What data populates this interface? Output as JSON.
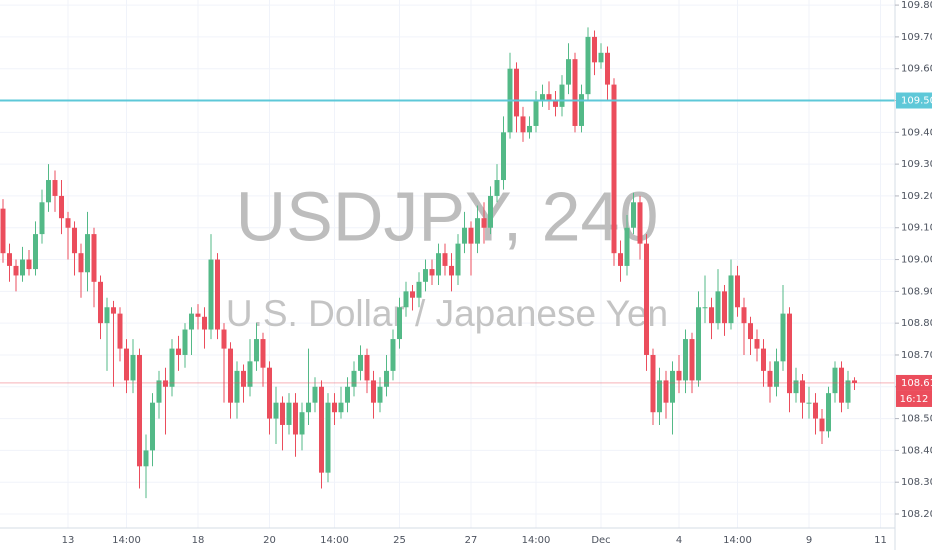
{
  "chart_data": {
    "type": "candlestick",
    "title": "USDJPY, 240",
    "subtitle": "U.S. Dollar / Japanese Yen",
    "x": [
      null,
      null,
      null,
      null,
      null,
      null,
      null,
      null,
      null,
      null,
      "13",
      null,
      null,
      null,
      null,
      null,
      null,
      null,
      null,
      "14:00",
      null,
      null,
      null,
      null,
      null,
      null,
      null,
      null,
      null,
      null,
      "18",
      null,
      null,
      null,
      null,
      null,
      null,
      null,
      null,
      null,
      null,
      "20",
      null,
      null,
      null,
      null,
      null,
      null,
      null,
      null,
      null,
      "14:00",
      null,
      null,
      null,
      null,
      null,
      null,
      null,
      null,
      null,
      "25",
      null,
      null,
      null,
      null,
      null,
      null,
      null,
      null,
      null,
      null,
      "27",
      null,
      null,
      null,
      null,
      null,
      null,
      null,
      null,
      null,
      "14:00",
      null,
      null,
      null,
      null,
      null,
      null,
      null,
      null,
      null,
      "Dec",
      null,
      null,
      null,
      null,
      null,
      null,
      null,
      null,
      null,
      null,
      null,
      "4",
      null,
      null,
      null,
      null,
      null,
      null,
      null,
      null,
      "14:00",
      null,
      null,
      null,
      null,
      null,
      null,
      null,
      null,
      null,
      null,
      "9",
      null,
      null,
      null,
      null,
      null,
      null,
      null,
      null,
      null,
      null,
      "11"
    ],
    "ohlc": [
      [
        109.16,
        109.19,
        108.99,
        109.02
      ],
      [
        109.02,
        109.05,
        108.93,
        108.98
      ],
      [
        108.98,
        109.0,
        108.9,
        108.95
      ],
      [
        108.95,
        109.04,
        108.93,
        109.0
      ],
      [
        109.0,
        109.03,
        108.95,
        108.97
      ],
      [
        108.97,
        109.12,
        108.95,
        109.08
      ],
      [
        109.08,
        109.22,
        109.05,
        109.18
      ],
      [
        109.18,
        109.3,
        109.15,
        109.25
      ],
      [
        109.25,
        109.28,
        109.15,
        109.2
      ],
      [
        109.2,
        109.25,
        109.08,
        109.13
      ],
      [
        109.13,
        109.15,
        109.0,
        109.1
      ],
      [
        109.1,
        109.12,
        108.95,
        109.02
      ],
      [
        109.02,
        109.05,
        108.88,
        108.96
      ],
      [
        108.96,
        109.15,
        108.9,
        109.08
      ],
      [
        109.08,
        109.1,
        108.85,
        108.93
      ],
      [
        108.93,
        108.95,
        108.75,
        108.8
      ],
      [
        108.8,
        108.88,
        108.65,
        108.85
      ],
      [
        108.85,
        108.87,
        108.6,
        108.83
      ],
      [
        108.83,
        108.85,
        108.68,
        108.72
      ],
      [
        108.72,
        108.75,
        108.58,
        108.62
      ],
      [
        108.62,
        108.75,
        108.58,
        108.7
      ],
      [
        108.7,
        108.72,
        108.28,
        108.35
      ],
      [
        108.35,
        108.45,
        108.25,
        108.4
      ],
      [
        108.4,
        108.58,
        108.35,
        108.55
      ],
      [
        108.55,
        108.65,
        108.5,
        108.62
      ],
      [
        108.62,
        108.66,
        108.45,
        108.6
      ],
      [
        108.6,
        108.75,
        108.57,
        108.72
      ],
      [
        108.72,
        108.76,
        108.65,
        108.7
      ],
      [
        108.7,
        108.8,
        108.66,
        108.78
      ],
      [
        108.78,
        108.85,
        108.7,
        108.83
      ],
      [
        108.83,
        108.86,
        108.78,
        108.82
      ],
      [
        108.82,
        108.85,
        108.72,
        108.78
      ],
      [
        108.78,
        109.08,
        108.75,
        109.0
      ],
      [
        109.0,
        109.02,
        108.75,
        108.78
      ],
      [
        108.78,
        108.8,
        108.55,
        108.72
      ],
      [
        108.72,
        108.74,
        108.5,
        108.55
      ],
      [
        108.55,
        108.68,
        108.5,
        108.65
      ],
      [
        108.65,
        108.67,
        108.55,
        108.6
      ],
      [
        108.6,
        108.75,
        108.57,
        108.68
      ],
      [
        108.68,
        108.8,
        108.65,
        108.75
      ],
      [
        108.75,
        108.77,
        108.6,
        108.66
      ],
      [
        108.66,
        108.68,
        108.45,
        108.5
      ],
      [
        108.5,
        108.6,
        108.42,
        108.55
      ],
      [
        108.55,
        108.57,
        108.4,
        108.48
      ],
      [
        108.48,
        108.58,
        108.45,
        108.55
      ],
      [
        108.55,
        108.58,
        108.38,
        108.45
      ],
      [
        108.45,
        108.55,
        108.4,
        108.52
      ],
      [
        108.52,
        108.72,
        108.48,
        108.55
      ],
      [
        108.55,
        108.63,
        108.52,
        108.6
      ],
      [
        108.6,
        108.62,
        108.28,
        108.33
      ],
      [
        108.33,
        108.58,
        108.3,
        108.55
      ],
      [
        108.55,
        108.58,
        108.48,
        108.52
      ],
      [
        108.52,
        108.6,
        108.5,
        108.55
      ],
      [
        108.55,
        108.63,
        108.52,
        108.6
      ],
      [
        108.6,
        108.68,
        108.57,
        108.65
      ],
      [
        108.65,
        108.73,
        108.62,
        108.7
      ],
      [
        108.7,
        108.72,
        108.58,
        108.62
      ],
      [
        108.62,
        108.65,
        108.5,
        108.55
      ],
      [
        108.55,
        108.63,
        108.52,
        108.6
      ],
      [
        108.6,
        108.7,
        108.57,
        108.65
      ],
      [
        108.65,
        108.78,
        108.62,
        108.75
      ],
      [
        108.75,
        108.88,
        108.72,
        108.85
      ],
      [
        108.85,
        108.93,
        108.82,
        108.9
      ],
      [
        108.9,
        108.92,
        108.84,
        108.88
      ],
      [
        108.88,
        108.96,
        108.85,
        108.93
      ],
      [
        108.93,
        109.0,
        108.9,
        108.97
      ],
      [
        108.97,
        109.0,
        108.92,
        108.95
      ],
      [
        108.95,
        109.05,
        108.92,
        109.02
      ],
      [
        109.02,
        109.05,
        108.95,
        108.98
      ],
      [
        108.98,
        109.02,
        108.9,
        108.95
      ],
      [
        108.95,
        109.08,
        108.92,
        109.05
      ],
      [
        109.05,
        109.15,
        109.02,
        109.1
      ],
      [
        109.1,
        109.12,
        108.95,
        109.05
      ],
      [
        109.05,
        109.17,
        109.02,
        109.13
      ],
      [
        109.13,
        109.18,
        109.05,
        109.1
      ],
      [
        109.1,
        109.23,
        109.08,
        109.2
      ],
      [
        109.2,
        109.3,
        109.18,
        109.25
      ],
      [
        109.25,
        109.45,
        109.22,
        109.4
      ],
      [
        109.4,
        109.65,
        109.38,
        109.6
      ],
      [
        109.6,
        109.62,
        109.4,
        109.45
      ],
      [
        109.45,
        109.48,
        109.37,
        109.4
      ],
      [
        109.4,
        109.45,
        109.38,
        109.42
      ],
      [
        109.42,
        109.53,
        109.4,
        109.5
      ],
      [
        109.5,
        109.55,
        109.48,
        109.52
      ],
      [
        109.52,
        109.56,
        109.47,
        109.5
      ],
      [
        109.5,
        109.53,
        109.45,
        109.48
      ],
      [
        109.48,
        109.58,
        109.45,
        109.55
      ],
      [
        109.55,
        109.68,
        109.52,
        109.63
      ],
      [
        109.63,
        109.65,
        109.4,
        109.42
      ],
      [
        109.42,
        109.55,
        109.4,
        109.52
      ],
      [
        109.52,
        109.73,
        109.5,
        109.7
      ],
      [
        109.7,
        109.72,
        109.58,
        109.62
      ],
      [
        109.62,
        109.68,
        109.6,
        109.65
      ],
      [
        109.65,
        109.67,
        109.5,
        109.55
      ],
      [
        109.55,
        109.57,
        108.98,
        109.02
      ],
      [
        109.02,
        109.06,
        108.93,
        108.98
      ],
      [
        108.98,
        109.14,
        108.95,
        109.1
      ],
      [
        109.1,
        109.21,
        109.08,
        109.18
      ],
      [
        109.18,
        109.2,
        109.0,
        109.05
      ],
      [
        109.05,
        109.08,
        108.65,
        108.7
      ],
      [
        108.7,
        108.72,
        108.48,
        108.52
      ],
      [
        108.52,
        108.66,
        108.48,
        108.62
      ],
      [
        108.62,
        108.65,
        108.5,
        108.55
      ],
      [
        108.55,
        108.68,
        108.45,
        108.65
      ],
      [
        108.65,
        108.7,
        108.58,
        108.62
      ],
      [
        108.62,
        108.78,
        108.58,
        108.75
      ],
      [
        108.75,
        108.77,
        108.58,
        108.62
      ],
      [
        108.62,
        108.9,
        108.6,
        108.85
      ],
      [
        108.85,
        108.95,
        108.8,
        108.85
      ],
      [
        108.85,
        108.88,
        108.75,
        108.8
      ],
      [
        108.8,
        108.97,
        108.78,
        108.9
      ],
      [
        108.9,
        108.92,
        108.76,
        108.8
      ],
      [
        108.8,
        109.0,
        108.78,
        108.95
      ],
      [
        108.95,
        108.98,
        108.82,
        108.85
      ],
      [
        108.85,
        108.88,
        108.7,
        108.8
      ],
      [
        108.8,
        108.82,
        108.7,
        108.75
      ],
      [
        108.75,
        108.78,
        108.68,
        108.72
      ],
      [
        108.72,
        108.75,
        108.6,
        108.65
      ],
      [
        108.65,
        108.68,
        108.55,
        108.6
      ],
      [
        108.6,
        108.72,
        108.57,
        108.68
      ],
      [
        108.68,
        108.92,
        108.65,
        108.83
      ],
      [
        108.83,
        108.85,
        108.52,
        108.58
      ],
      [
        108.58,
        108.66,
        108.55,
        108.62
      ],
      [
        108.62,
        108.64,
        108.5,
        108.55
      ],
      [
        108.55,
        108.6,
        108.5,
        108.55
      ],
      [
        108.55,
        108.58,
        108.45,
        108.5
      ],
      [
        108.5,
        108.53,
        108.42,
        108.46
      ],
      [
        108.46,
        108.6,
        108.44,
        108.58
      ],
      [
        108.58,
        108.68,
        108.55,
        108.66
      ],
      [
        108.66,
        108.68,
        108.52,
        108.55
      ],
      [
        108.55,
        108.65,
        108.53,
        108.62
      ],
      [
        108.62,
        108.63,
        108.59,
        108.612
      ],
      null,
      null,
      null,
      null
    ],
    "up_color": "#53b987",
    "down_color": "#eb4d5c",
    "ylim": [
      108.156,
      109.816
    ],
    "yticks": [
      {
        "value": 108.2,
        "label": "108.200"
      },
      {
        "value": 108.3,
        "label": "108.300"
      },
      {
        "value": 108.4,
        "label": "108.400"
      },
      {
        "value": 108.5,
        "label": "108.500"
      },
      {
        "value": 108.6,
        "label": "108.600"
      },
      {
        "value": 108.7,
        "label": "108.700"
      },
      {
        "value": 108.8,
        "label": "108.800"
      },
      {
        "value": 108.9,
        "label": "108.900"
      },
      {
        "value": 109.0,
        "label": "109.000"
      },
      {
        "value": 109.1,
        "label": "109.100"
      },
      {
        "value": 109.2,
        "label": "109.200"
      },
      {
        "value": 109.3,
        "label": "109.300"
      },
      {
        "value": 109.4,
        "label": "109.400"
      },
      {
        "value": 109.5,
        "label": "109.500"
      },
      {
        "value": 109.6,
        "label": "109.600"
      },
      {
        "value": 109.7,
        "label": "109.700"
      },
      {
        "value": 109.8,
        "label": "109.800"
      }
    ],
    "grid": true,
    "hline": {
      "value": 109.5,
      "label": "109.500",
      "color": "#5ec8d8"
    },
    "last_price": 108.612,
    "countdown": "16:12",
    "last_color": "#eb4d5c"
  }
}
